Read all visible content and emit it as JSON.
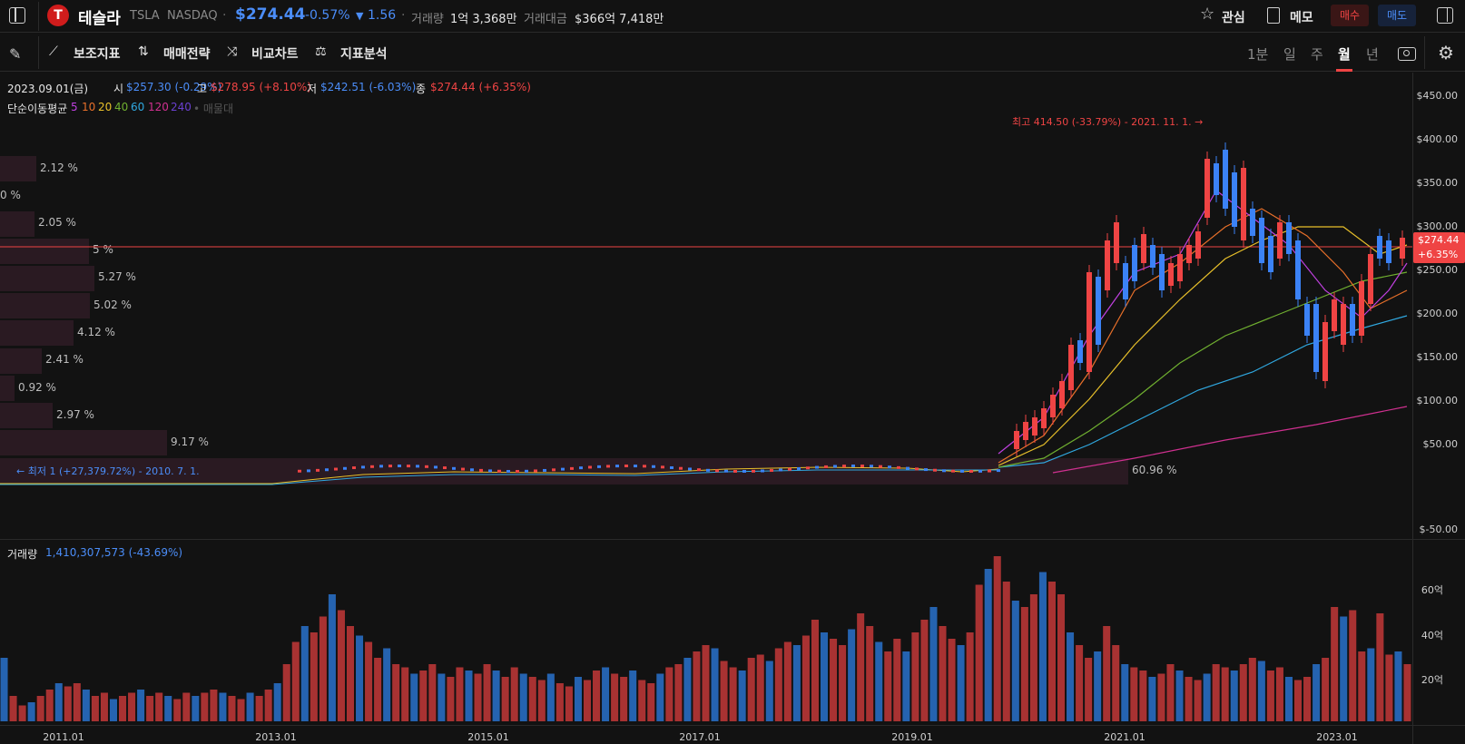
{
  "header": {
    "stock_name": "테슬라",
    "ticker": "TSLA",
    "exchange": "NASDAQ",
    "price": "$274.44",
    "change_pct": "-0.57%",
    "change_abs": "1.56",
    "volume_label": "거래량",
    "volume_value": "1억 3,368만",
    "amount_label": "거래대금",
    "amount_value": "$366억 7,418만",
    "watch_label": "관심",
    "memo_label": "메모",
    "buy_label": "매수",
    "sell_label": "매도"
  },
  "toolbar": {
    "indicators_label": "보조지표",
    "strategy_label": "매매전략",
    "compare_label": "비교차트",
    "analysis_label": "지표분석",
    "periods": [
      "1분",
      "일",
      "주",
      "월",
      "년"
    ],
    "active_period": "월"
  },
  "ohlc": {
    "date": "2023.09.01(금)",
    "open_label": "시",
    "open": "$257.30 (-0.29%)",
    "high_label": "고",
    "high": "$278.95 (+8.10%)",
    "low_label": "저",
    "low": "$242.51 (-6.03%)",
    "close_label": "종",
    "close": "$274.44 (+6.35%)"
  },
  "ma": {
    "label": "단순이동평균",
    "periods": [
      "5",
      "10",
      "20",
      "40",
      "60",
      "120",
      "240"
    ],
    "colors": [
      "#c040e0",
      "#e8702a",
      "#e8c02a",
      "#70b030",
      "#30a8e0",
      "#d03090",
      "#6a40d0"
    ],
    "extra": "• 매물대"
  },
  "annotations": {
    "high": "최고 414.50 (-33.79%) - 2021. 11. 1. →",
    "low": "← 최저 1 (+27,379.72%) - 2010. 7. 1."
  },
  "price_tag": {
    "price": "$274.44",
    "pct": "+6.35%"
  },
  "y_axis": [
    "$450.00",
    "$400.00",
    "$350.00",
    "$300.00",
    "$250.00",
    "$200.00",
    "$150.00",
    "$100.00",
    "$50.00",
    "$-50.00"
  ],
  "volume_profile": [
    "2.12 %",
    "0 %",
    "2.05 %",
    "5 %",
    "5.27 %",
    "5.02 %",
    "4.12 %",
    "2.41 %",
    "0.92 %",
    "2.97 %",
    "9.17 %",
    "60.96 %"
  ],
  "volume_panel": {
    "label": "거래량",
    "value": "1,410,307,573 (-43.69%)",
    "y_axis": [
      "60억",
      "40억",
      "20억"
    ]
  },
  "x_axis": [
    "2011.01",
    "2013.01",
    "2015.01",
    "2017.01",
    "2019.01",
    "2021.01",
    "2023.01"
  ],
  "colors": {
    "up": "#ef4444",
    "down": "#3b82f6",
    "bg": "#121212"
  }
}
